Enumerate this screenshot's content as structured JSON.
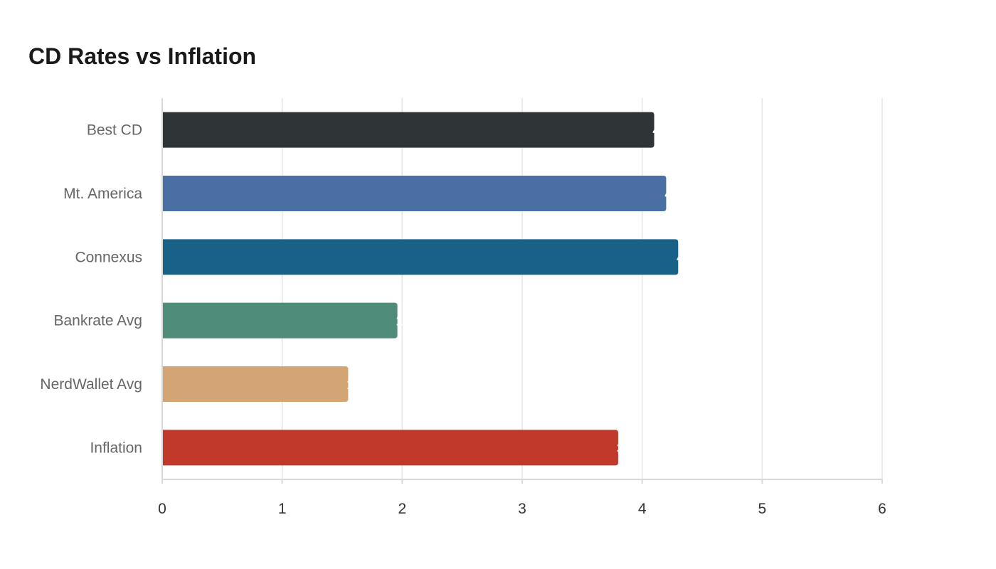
{
  "chart_data": {
    "type": "bar",
    "orientation": "horizontal",
    "title": "CD Rates vs Inflation",
    "xlabel": "",
    "ylabel": "",
    "categories": [
      "Best CD",
      "Mt. America",
      "Connexus",
      "Bankrate Avg",
      "NerdWallet Avg",
      "Inflation"
    ],
    "values": [
      4.1,
      4.2,
      4.3,
      1.96,
      1.55,
      3.8
    ],
    "colors": [
      "#2f3437",
      "#4a6fa5",
      "#1a6187",
      "#4f8c7a",
      "#d4a574",
      "#c0392b"
    ],
    "xlim": [
      0,
      6
    ],
    "xticks": [
      "0",
      "1",
      "2",
      "3",
      "4",
      "5",
      "6"
    ],
    "grid": true,
    "legend": "none"
  }
}
